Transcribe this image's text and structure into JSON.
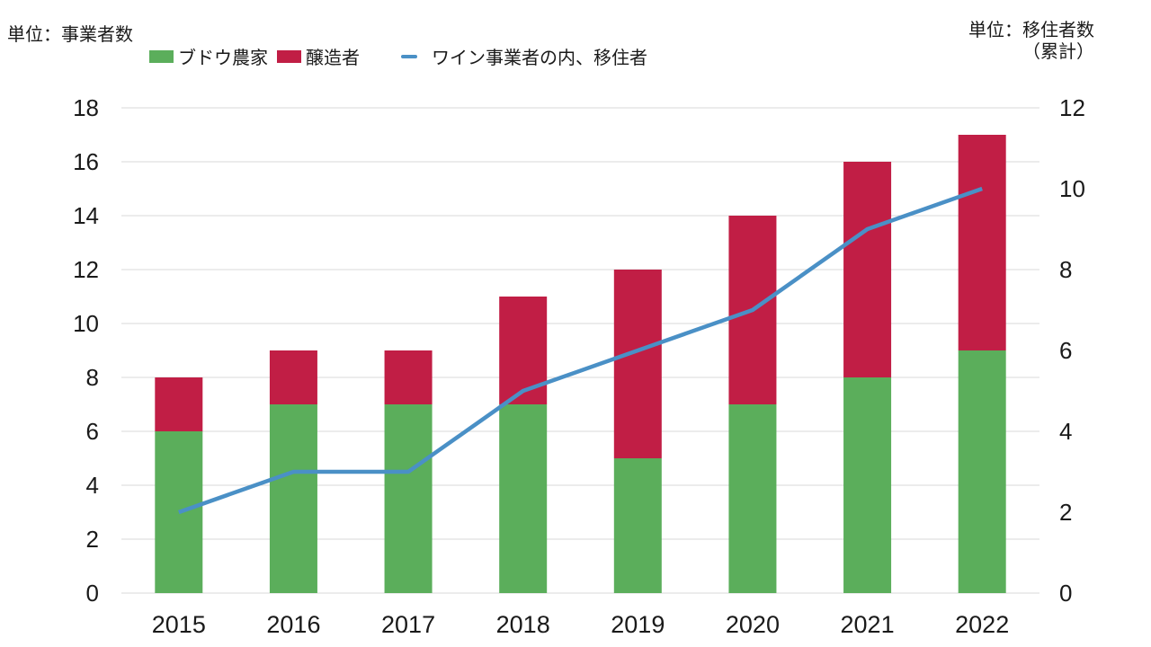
{
  "units": {
    "left": "単位：事業者数",
    "right_line1": "単位：移住者数",
    "right_line2": "（累計）"
  },
  "legend": [
    {
      "label": "ブドウ農家",
      "type": "box",
      "color": "#5BAE5B"
    },
    {
      "label": "醸造者",
      "type": "box",
      "color": "#C11E45"
    },
    {
      "label": "ワイン事業者の内、移住者",
      "type": "line",
      "color": "#4A90C6"
    }
  ],
  "chart_data": {
    "type": "bar",
    "subtype": "stacked-bar-with-line",
    "categories": [
      "2015",
      "2016",
      "2017",
      "2018",
      "2019",
      "2020",
      "2021",
      "2022"
    ],
    "series": [
      {
        "name": "ブドウ農家",
        "type": "bar",
        "axis": "left",
        "color": "#5BAE5B",
        "values": [
          6,
          7,
          7,
          7,
          5,
          7,
          8,
          9
        ]
      },
      {
        "name": "醸造者",
        "type": "bar",
        "axis": "left",
        "color": "#C11E45",
        "values": [
          2,
          2,
          2,
          4,
          7,
          7,
          8,
          8
        ]
      },
      {
        "name": "ワイン事業者の内、移住者",
        "type": "line",
        "axis": "right",
        "color": "#4A90C6",
        "values": [
          2,
          3,
          3,
          5,
          6,
          7,
          9,
          10
        ]
      }
    ],
    "bar_totals": [
      8,
      9,
      9,
      11,
      12,
      14,
      16,
      17
    ],
    "left_axis": {
      "ticks": [
        0,
        2,
        4,
        6,
        8,
        10,
        12,
        14,
        16,
        18
      ],
      "range": [
        0,
        18
      ],
      "label": "単位：事業者数"
    },
    "right_axis": {
      "ticks": [
        0,
        2,
        4,
        6,
        8,
        10,
        12
      ],
      "range": [
        0,
        12
      ],
      "label": "単位：移住者数（累計）"
    },
    "grid": true,
    "gridline_color": "#D9D9D9",
    "legend_position": "top",
    "title": ""
  },
  "colors": {
    "grape_farmers": "#5BAE5B",
    "brewers": "#C11E45",
    "migrants_line": "#4A90C6",
    "gridline": "#D9D9D9",
    "text": "#1a1a1a"
  }
}
